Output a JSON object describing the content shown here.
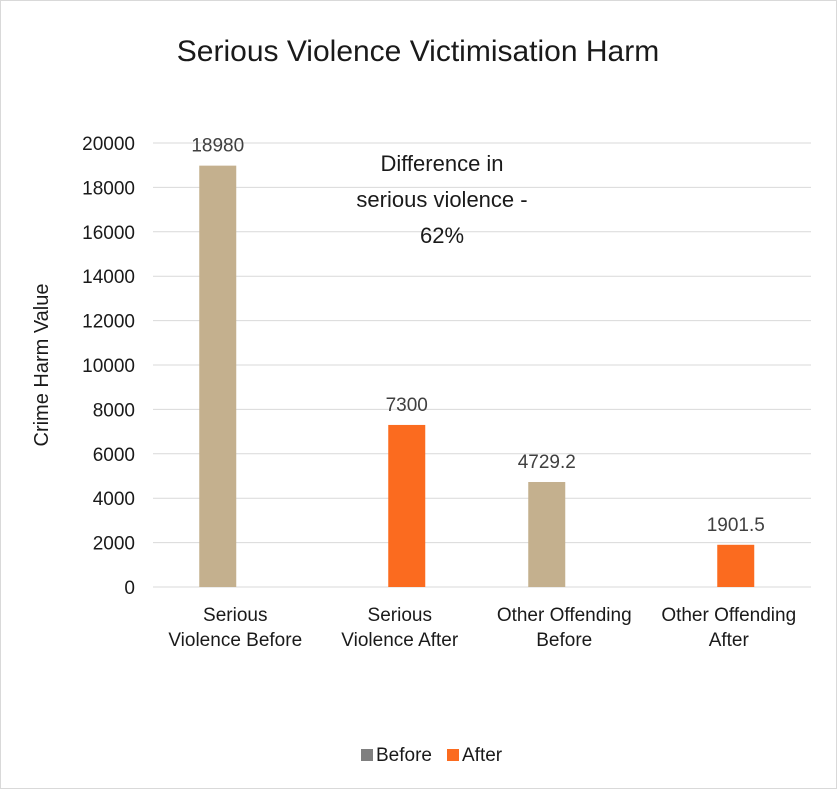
{
  "chart_data": {
    "type": "bar",
    "title": "Serious Violence Victimisation Harm",
    "ylabel": "Crime Harm Value",
    "xlabel": "",
    "ylim": [
      0,
      20000
    ],
    "yticks": [
      0,
      2000,
      4000,
      6000,
      8000,
      10000,
      12000,
      14000,
      16000,
      18000,
      20000
    ],
    "grid": true,
    "legend_position": "bottom",
    "categories": [
      [
        "Serious",
        "Violence Before"
      ],
      [
        "Serious",
        "Violence After"
      ],
      [
        "Other Offending",
        "Before"
      ],
      [
        "Other Offending",
        "After"
      ]
    ],
    "bars": [
      {
        "category_index": 0,
        "series": "Before",
        "value": 18980,
        "label": "18980"
      },
      {
        "category_index": 1,
        "series": "After",
        "value": 7300,
        "label": "7300"
      },
      {
        "category_index": 2,
        "series": "Before",
        "value": 4729.2,
        "label": "4729.2"
      },
      {
        "category_index": 3,
        "series": "After",
        "value": 1901.5,
        "label": "1901.5"
      }
    ],
    "series": [
      {
        "name": "Before",
        "color": "#c4b08e",
        "legend_color": "#7f7f7f"
      },
      {
        "name": "After",
        "color": "#fb6b1f",
        "legend_color": "#fb6b1f"
      }
    ],
    "annotation": [
      "Difference in",
      "serious violence  -",
      "62%"
    ]
  }
}
